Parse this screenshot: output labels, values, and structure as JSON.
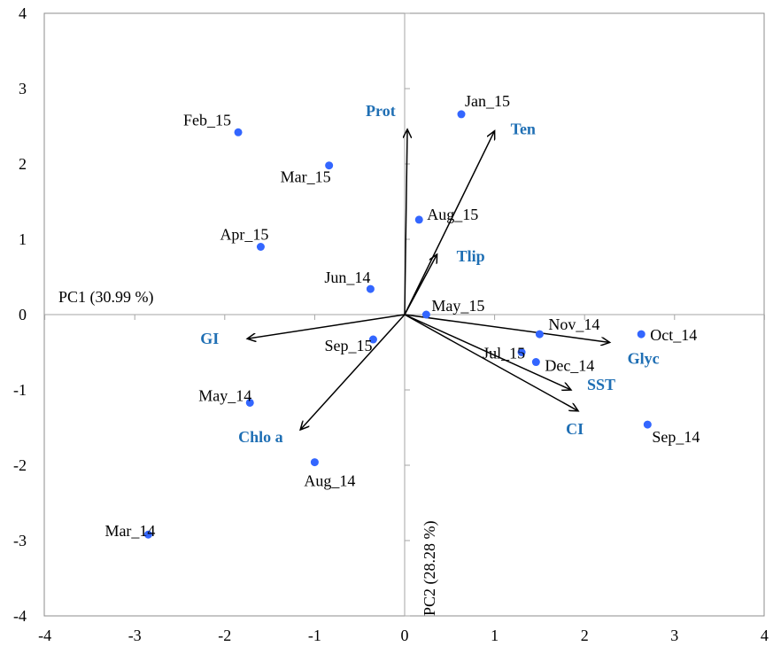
{
  "chart_data": {
    "type": "scatter",
    "subtype": "pca-biplot",
    "title": "",
    "xlabel": "PC1 (30.99 %)",
    "ylabel": "PC2 (28.28 %)",
    "xlim": [
      -4,
      4
    ],
    "ylim": [
      -4,
      4
    ],
    "x_ticks": [
      "-4",
      "-3",
      "-2",
      "-1",
      "0",
      "1",
      "2",
      "3",
      "4"
    ],
    "y_ticks": [
      "4",
      "3",
      "2",
      "1",
      "0",
      "-1",
      "-2",
      "-3",
      "-4"
    ],
    "grid": false,
    "colors": {
      "point": "#3366ff",
      "variable_label": "#1f6fb4",
      "vector": "#000000",
      "axis": "#a6a6a6"
    },
    "observations": [
      {
        "label": "Jan_15",
        "x": 0.63,
        "y": 2.66
      },
      {
        "label": "Feb_15",
        "x": -1.85,
        "y": 2.42
      },
      {
        "label": "Mar_15",
        "x": -0.84,
        "y": 1.98
      },
      {
        "label": "Apr_15",
        "x": -1.6,
        "y": 0.9
      },
      {
        "label": "May_15",
        "x": 0.24,
        "y": 0.0
      },
      {
        "label": "Jun_14",
        "x": -0.38,
        "y": 0.34
      },
      {
        "label": "Aug_15",
        "x": 0.16,
        "y": 1.26
      },
      {
        "label": "Sep_15",
        "x": -0.35,
        "y": -0.33
      },
      {
        "label": "Nov_14",
        "x": 1.5,
        "y": -0.26
      },
      {
        "label": "Oct_14",
        "x": 2.63,
        "y": -0.26
      },
      {
        "label": "Jul_15",
        "x": 1.3,
        "y": -0.5
      },
      {
        "label": "Dec_14",
        "x": 1.46,
        "y": -0.63
      },
      {
        "label": "May_14",
        "x": -1.72,
        "y": -1.17
      },
      {
        "label": "Sep_14",
        "x": 2.7,
        "y": -1.46
      },
      {
        "label": "Aug_14",
        "x": -1.0,
        "y": -1.96
      },
      {
        "label": "Mar_14",
        "x": -2.85,
        "y": -2.92
      }
    ],
    "variables": [
      {
        "label": "Prot",
        "x": 0.03,
        "y": 2.46
      },
      {
        "label": "Ten",
        "x": 1.0,
        "y": 2.44
      },
      {
        "label": "Tlip",
        "x": 0.36,
        "y": 0.8
      },
      {
        "label": "GI",
        "x": -1.75,
        "y": -0.32
      },
      {
        "label": "Chlo a",
        "x": -1.16,
        "y": -1.53
      },
      {
        "label": "Glyc",
        "x": 2.28,
        "y": -0.37
      },
      {
        "label": "SST",
        "x": 1.85,
        "y": -1.0
      },
      {
        "label": "CI",
        "x": 1.93,
        "y": -1.28
      }
    ]
  }
}
